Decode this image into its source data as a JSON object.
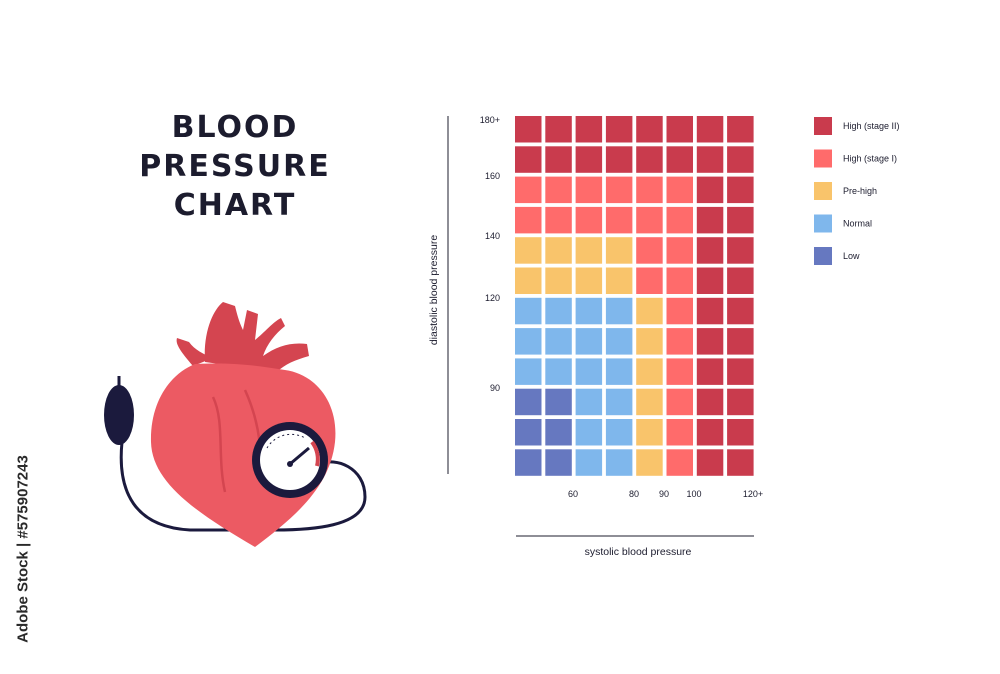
{
  "title_lines": [
    "BLOOD",
    "PRESSURE",
    "CHART"
  ],
  "watermark": "Adobe Stock | #575907243",
  "colors": {
    "high2": "#c93b4d",
    "high1": "#ff6b6b",
    "prehigh": "#f9c46b",
    "normal": "#7fb7ec",
    "low": "#6678c0",
    "axis": "#1c1c2e",
    "heart": "#ec5a63",
    "heart_dark": "#d44550",
    "navy": "#1b1a3d"
  },
  "chart_data": {
    "type": "heatmap",
    "xlabel": "systolic blood pressure",
    "ylabel": "diastolic blood pressure",
    "x_tick_labels": [
      "60",
      "80",
      "90",
      "100",
      "120+"
    ],
    "y_tick_labels": [
      "180+",
      "160",
      "140",
      "120",
      "90"
    ],
    "legend": [
      {
        "key": "high2",
        "label": "High (stage II)"
      },
      {
        "key": "high1",
        "label": "High (stage I)"
      },
      {
        "key": "prehigh",
        "label": "Pre-high"
      },
      {
        "key": "normal",
        "label": "Normal"
      },
      {
        "key": "low",
        "label": "Low"
      }
    ],
    "grid": [
      [
        "high2",
        "high2",
        "high2",
        "high2",
        "high2",
        "high2",
        "high2",
        "high2"
      ],
      [
        "high2",
        "high2",
        "high2",
        "high2",
        "high2",
        "high2",
        "high2",
        "high2"
      ],
      [
        "high1",
        "high1",
        "high1",
        "high1",
        "high1",
        "high1",
        "high2",
        "high2"
      ],
      [
        "high1",
        "high1",
        "high1",
        "high1",
        "high1",
        "high1",
        "high2",
        "high2"
      ],
      [
        "prehigh",
        "prehigh",
        "prehigh",
        "prehigh",
        "high1",
        "high1",
        "high2",
        "high2"
      ],
      [
        "prehigh",
        "prehigh",
        "prehigh",
        "prehigh",
        "high1",
        "high1",
        "high2",
        "high2"
      ],
      [
        "normal",
        "normal",
        "normal",
        "normal",
        "prehigh",
        "high1",
        "high2",
        "high2"
      ],
      [
        "normal",
        "normal",
        "normal",
        "normal",
        "prehigh",
        "high1",
        "high2",
        "high2"
      ],
      [
        "normal",
        "normal",
        "normal",
        "normal",
        "prehigh",
        "high1",
        "high2",
        "high2"
      ],
      [
        "low",
        "low",
        "normal",
        "normal",
        "prehigh",
        "high1",
        "high2",
        "high2"
      ],
      [
        "low",
        "low",
        "normal",
        "normal",
        "prehigh",
        "high1",
        "high2",
        "high2"
      ],
      [
        "low",
        "low",
        "normal",
        "normal",
        "prehigh",
        "high1",
        "high2",
        "high2"
      ]
    ]
  }
}
